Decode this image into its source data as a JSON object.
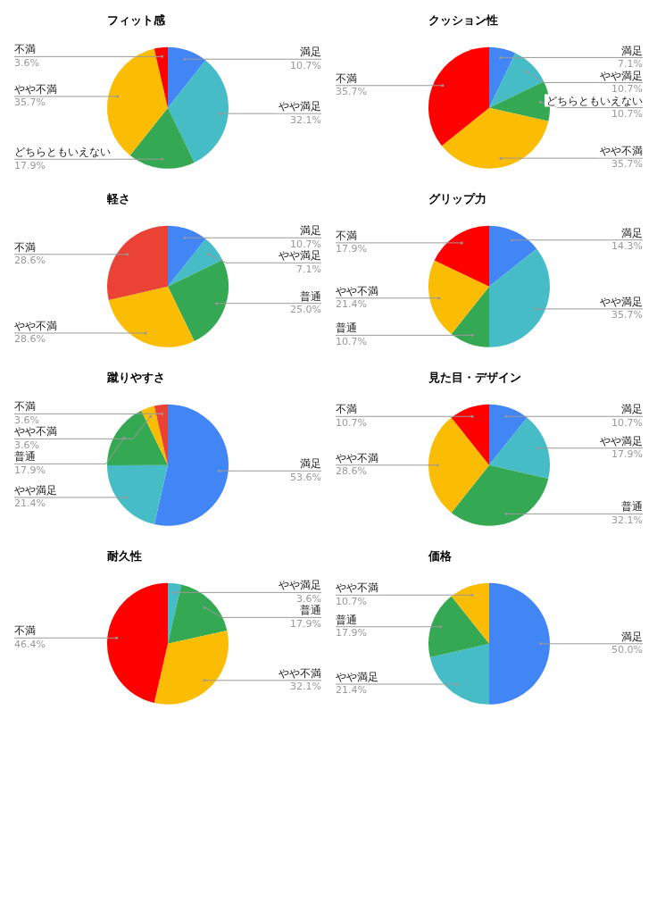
{
  "chart_data": [
    {
      "type": "pie",
      "title": "フィット感",
      "categories": [
        "満足",
        "やや満足",
        "どちらともいえない",
        "やや不満",
        "不満"
      ],
      "values": [
        10.7,
        32.1,
        17.9,
        35.7,
        3.6
      ],
      "value_labels": [
        "10.7%",
        "32.1%",
        "17.9%",
        "35.7%",
        "3.6%"
      ],
      "colors": [
        "#4285f4",
        "#46bdc6",
        "#34a853",
        "#fbbc04",
        "#ff0000"
      ],
      "legend": false
    },
    {
      "type": "pie",
      "title": "クッション性",
      "categories": [
        "満足",
        "やや満足",
        "どちらともいえない",
        "やや不満",
        "不満"
      ],
      "values": [
        7.1,
        10.7,
        10.7,
        35.7,
        35.7
      ],
      "value_labels": [
        "7.1%",
        "10.7%",
        "10.7%",
        "35.7%",
        "35.7%"
      ],
      "colors": [
        "#4285f4",
        "#46bdc6",
        "#34a853",
        "#fbbc04",
        "#ff0000"
      ],
      "legend": false
    },
    {
      "type": "pie",
      "title": "軽さ",
      "categories": [
        "満足",
        "やや満足",
        "普通",
        "やや不満",
        "不満"
      ],
      "values": [
        10.7,
        7.1,
        25.0,
        28.6,
        28.6
      ],
      "value_labels": [
        "10.7%",
        "7.1%",
        "25.0%",
        "28.6%",
        "28.6%"
      ],
      "colors": [
        "#4285f4",
        "#46bdc6",
        "#34a853",
        "#fbbc04",
        "#ea4335"
      ],
      "legend": false
    },
    {
      "type": "pie",
      "title": "グリップ力",
      "categories": [
        "満足",
        "やや満足",
        "普通",
        "やや不満",
        "不満"
      ],
      "values": [
        14.3,
        35.7,
        10.7,
        21.4,
        17.9
      ],
      "value_labels": [
        "14.3%",
        "35.7%",
        "10.7%",
        "21.4%",
        "17.9%"
      ],
      "colors": [
        "#4285f4",
        "#46bdc6",
        "#34a853",
        "#fbbc04",
        "#ff0000"
      ],
      "legend": false
    },
    {
      "type": "pie",
      "title": "蹴りやすさ",
      "categories": [
        "満足",
        "やや満足",
        "普通",
        "やや不満",
        "不満"
      ],
      "values": [
        53.6,
        21.4,
        17.9,
        3.6,
        3.6
      ],
      "value_labels": [
        "53.6%",
        "21.4%",
        "17.9%",
        "3.6%",
        "3.6%"
      ],
      "colors": [
        "#4285f4",
        "#46bdc6",
        "#34a853",
        "#fbbc04",
        "#ea4335"
      ],
      "legend": false
    },
    {
      "type": "pie",
      "title": "見た目・デザイン",
      "categories": [
        "満足",
        "やや満足",
        "普通",
        "やや不満",
        "不満"
      ],
      "values": [
        10.7,
        17.9,
        32.1,
        28.6,
        10.7
      ],
      "value_labels": [
        "10.7%",
        "17.9%",
        "32.1%",
        "28.6%",
        "10.7%"
      ],
      "colors": [
        "#4285f4",
        "#46bdc6",
        "#34a853",
        "#fbbc04",
        "#ff0000"
      ],
      "legend": false
    },
    {
      "type": "pie",
      "title": "耐久性",
      "categories": [
        "やや満足",
        "普通",
        "やや不満",
        "不満"
      ],
      "values": [
        3.6,
        17.9,
        32.1,
        46.4
      ],
      "value_labels": [
        "3.6%",
        "17.9%",
        "32.1%",
        "46.4%"
      ],
      "colors": [
        "#46bdc6",
        "#34a853",
        "#fbbc04",
        "#ff0000"
      ],
      "legend": false
    },
    {
      "type": "pie",
      "title": "価格",
      "categories": [
        "満足",
        "やや満足",
        "普通",
        "やや不満"
      ],
      "values": [
        50.0,
        21.4,
        17.9,
        10.7
      ],
      "value_labels": [
        "50.0%",
        "21.4%",
        "17.9%",
        "10.7%"
      ],
      "colors": [
        "#4285f4",
        "#46bdc6",
        "#34a853",
        "#fbbc04"
      ],
      "legend": false
    }
  ]
}
